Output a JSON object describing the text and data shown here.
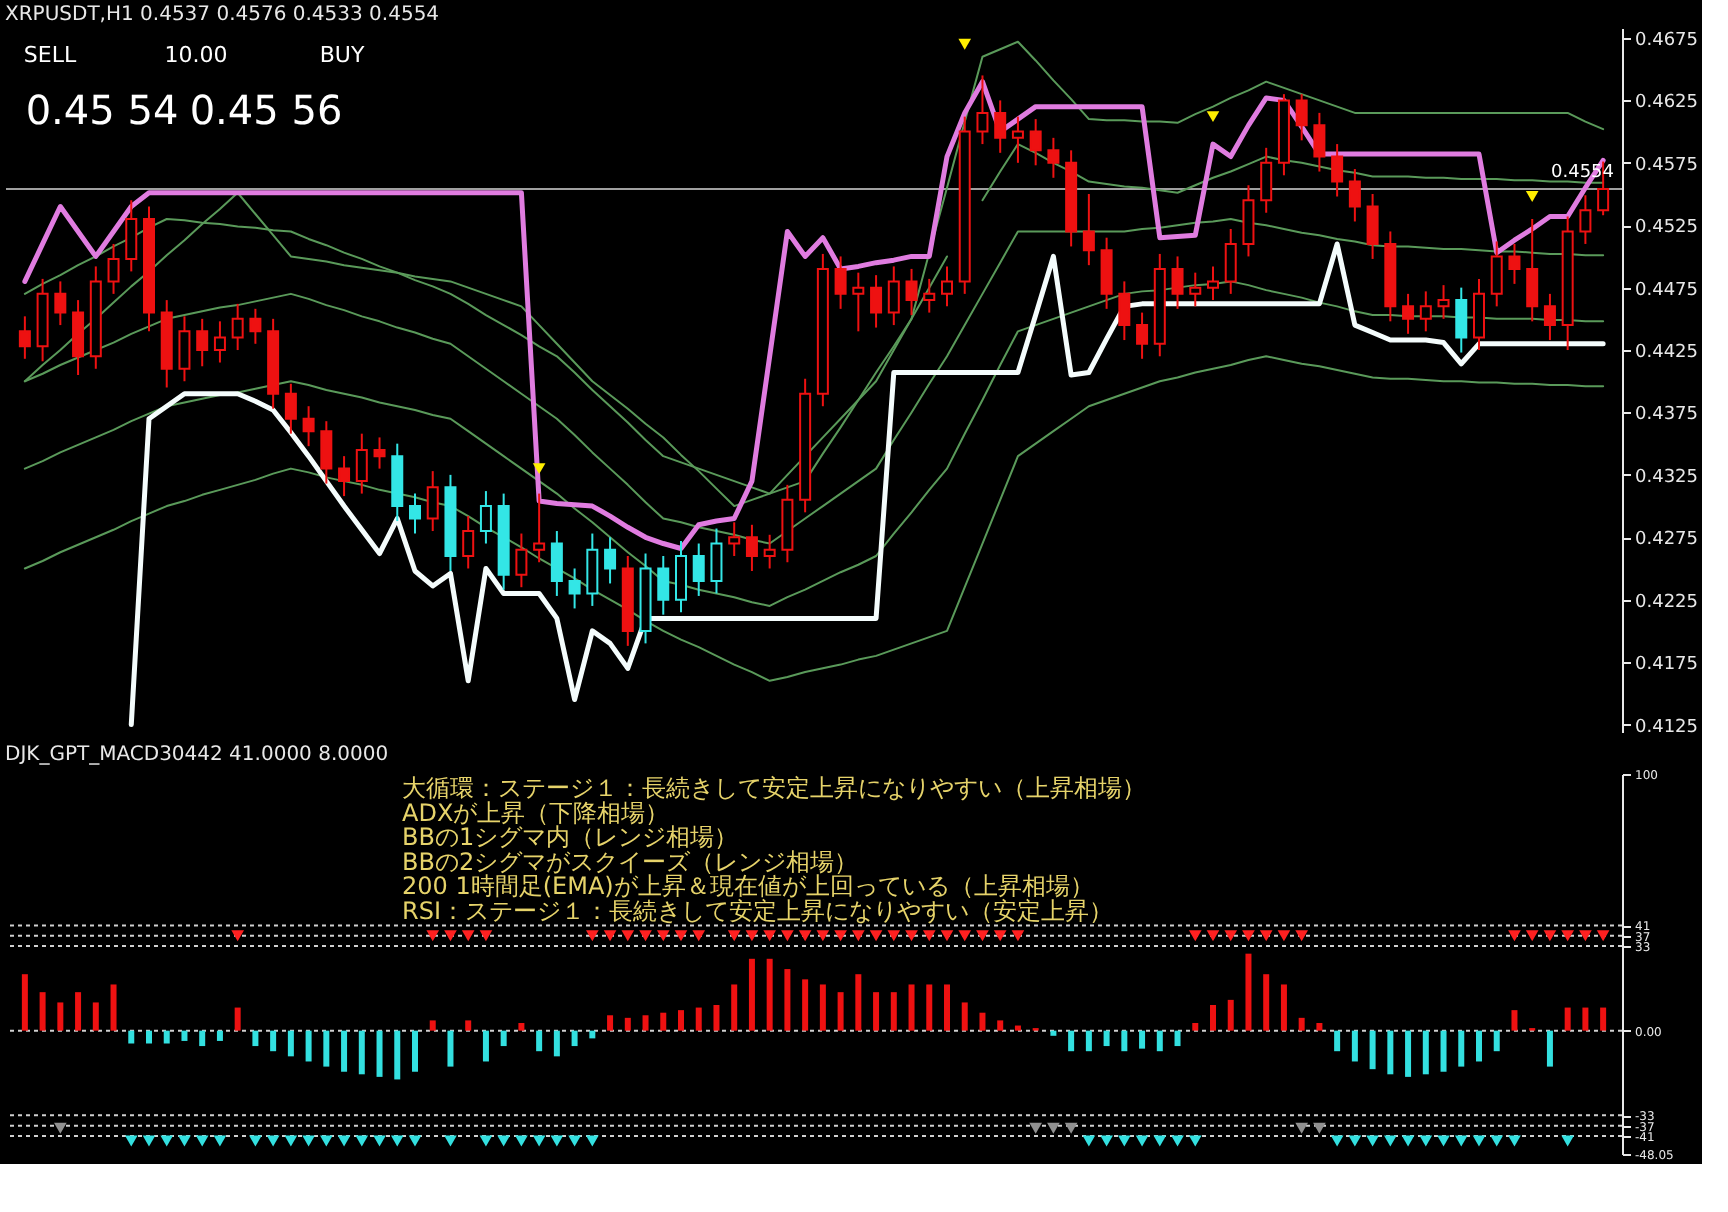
{
  "chart_data": [
    {
      "type": "candlestick",
      "title": "XRPUSDT,H1  0.4537 0.4576 0.4533 0.4554",
      "categories": [
        null,
        null,
        null,
        null,
        null,
        null,
        null,
        null,
        null,
        null,
        null,
        null,
        null,
        null,
        null,
        null,
        null,
        null,
        null,
        null,
        null,
        null,
        null,
        null,
        null,
        null,
        null,
        null,
        null,
        null,
        null,
        null,
        null,
        null,
        null,
        null,
        null,
        null,
        null,
        null,
        null,
        null,
        null,
        null,
        null,
        null,
        null,
        null,
        null,
        null,
        null,
        null,
        null,
        null,
        null,
        null,
        null,
        null,
        null,
        null,
        null,
        null,
        null,
        null,
        null,
        null,
        null,
        null,
        null,
        null,
        null,
        null,
        null,
        null,
        null,
        null,
        null,
        null,
        null,
        null,
        null,
        null,
        null,
        null,
        null,
        null,
        null,
        null,
        null,
        null
      ],
      "ohlc": [
        [
          0.444,
          0.4452,
          0.4418,
          0.4428
        ],
        [
          0.4428,
          0.4482,
          0.4416,
          0.447
        ],
        [
          0.447,
          0.448,
          0.4445,
          0.4455
        ],
        [
          0.4455,
          0.4465,
          0.4405,
          0.442
        ],
        [
          0.442,
          0.4492,
          0.441,
          0.448
        ],
        [
          0.448,
          0.451,
          0.447,
          0.4498
        ],
        [
          0.4498,
          0.4545,
          0.4488,
          0.453
        ],
        [
          0.453,
          0.454,
          0.444,
          0.4455
        ],
        [
          0.4455,
          0.4465,
          0.4395,
          0.441
        ],
        [
          0.441,
          0.4452,
          0.44,
          0.444
        ],
        [
          0.444,
          0.445,
          0.4412,
          0.4425
        ],
        [
          0.4425,
          0.4448,
          0.4415,
          0.4435
        ],
        [
          0.4435,
          0.4462,
          0.4425,
          0.445
        ],
        [
          0.445,
          0.4458,
          0.443,
          0.444
        ],
        [
          0.444,
          0.445,
          0.4378,
          0.439
        ],
        [
          0.439,
          0.4398,
          0.4358,
          0.437
        ],
        [
          0.437,
          0.438,
          0.4348,
          0.436
        ],
        [
          0.436,
          0.4368,
          0.4318,
          0.433
        ],
        [
          0.433,
          0.434,
          0.4308,
          0.432
        ],
        [
          0.432,
          0.4358,
          0.431,
          0.4345
        ],
        [
          0.4345,
          0.4355,
          0.433,
          0.434
        ],
        [
          0.434,
          0.435,
          0.4288,
          0.43
        ],
        [
          0.43,
          0.431,
          0.4278,
          0.429
        ],
        [
          0.429,
          0.4328,
          0.428,
          0.4315
        ],
        [
          0.4315,
          0.4325,
          0.4248,
          0.426
        ],
        [
          0.426,
          0.4292,
          0.425,
          0.428
        ],
        [
          0.428,
          0.4312,
          0.427,
          0.43
        ],
        [
          0.43,
          0.431,
          0.4233,
          0.4245
        ],
        [
          0.4245,
          0.4278,
          0.4235,
          0.4265
        ],
        [
          0.4265,
          0.431,
          0.4255,
          0.427
        ],
        [
          0.427,
          0.428,
          0.4228,
          0.424
        ],
        [
          0.424,
          0.425,
          0.4218,
          0.423
        ],
        [
          0.423,
          0.4278,
          0.422,
          0.4265
        ],
        [
          0.4265,
          0.4275,
          0.4238,
          0.425
        ],
        [
          0.425,
          0.426,
          0.4188,
          0.42
        ],
        [
          0.42,
          0.4262,
          0.419,
          0.425
        ],
        [
          0.425,
          0.426,
          0.4213,
          0.4225
        ],
        [
          0.4225,
          0.4272,
          0.4215,
          0.426
        ],
        [
          0.426,
          0.427,
          0.4228,
          0.424
        ],
        [
          0.424,
          0.4282,
          0.423,
          0.427
        ],
        [
          0.427,
          0.4287,
          0.426,
          0.4275
        ],
        [
          0.4275,
          0.4285,
          0.4248,
          0.426
        ],
        [
          0.426,
          0.4277,
          0.425,
          0.4265
        ],
        [
          0.4265,
          0.4317,
          0.4255,
          0.4305
        ],
        [
          0.4305,
          0.4402,
          0.4295,
          0.439
        ],
        [
          0.439,
          0.4502,
          0.438,
          0.449
        ],
        [
          0.449,
          0.45,
          0.4458,
          0.447
        ],
        [
          0.447,
          0.4487,
          0.444,
          0.4475
        ],
        [
          0.4475,
          0.4485,
          0.4443,
          0.4455
        ],
        [
          0.4455,
          0.4492,
          0.4445,
          0.448
        ],
        [
          0.448,
          0.449,
          0.4453,
          0.4465
        ],
        [
          0.4465,
          0.4482,
          0.4455,
          0.447
        ],
        [
          0.447,
          0.4492,
          0.446,
          0.448
        ],
        [
          0.448,
          0.4612,
          0.447,
          0.46
        ],
        [
          0.46,
          0.4645,
          0.459,
          0.4615
        ],
        [
          0.4615,
          0.4625,
          0.4583,
          0.4595
        ],
        [
          0.4595,
          0.4612,
          0.4575,
          0.46
        ],
        [
          0.46,
          0.461,
          0.4573,
          0.4585
        ],
        [
          0.4585,
          0.4595,
          0.4563,
          0.4575
        ],
        [
          0.4575,
          0.4585,
          0.4508,
          0.452
        ],
        [
          0.452,
          0.455,
          0.4493,
          0.4505
        ],
        [
          0.4505,
          0.4515,
          0.4458,
          0.447
        ],
        [
          0.447,
          0.448,
          0.4433,
          0.4445
        ],
        [
          0.4445,
          0.4455,
          0.4418,
          0.443
        ],
        [
          0.443,
          0.4502,
          0.442,
          0.449
        ],
        [
          0.449,
          0.45,
          0.4458,
          0.447
        ],
        [
          0.447,
          0.4487,
          0.446,
          0.4475
        ],
        [
          0.4475,
          0.4492,
          0.4465,
          0.448
        ],
        [
          0.448,
          0.4522,
          0.447,
          0.451
        ],
        [
          0.451,
          0.4557,
          0.45,
          0.4545
        ],
        [
          0.4545,
          0.4587,
          0.4535,
          0.4575
        ],
        [
          0.4575,
          0.463,
          0.4565,
          0.4625
        ],
        [
          0.4625,
          0.463,
          0.4593,
          0.4605
        ],
        [
          0.4605,
          0.4615,
          0.4568,
          0.458
        ],
        [
          0.458,
          0.459,
          0.4548,
          0.456
        ],
        [
          0.456,
          0.457,
          0.4528,
          0.454
        ],
        [
          0.454,
          0.455,
          0.4498,
          0.451
        ],
        [
          0.451,
          0.452,
          0.4448,
          0.446
        ],
        [
          0.446,
          0.447,
          0.4438,
          0.445
        ],
        [
          0.445,
          0.4472,
          0.444,
          0.446
        ],
        [
          0.446,
          0.4477,
          0.445,
          0.4465
        ],
        [
          0.4465,
          0.4475,
          0.4423,
          0.4435
        ],
        [
          0.4435,
          0.4482,
          0.4425,
          0.447
        ],
        [
          0.447,
          0.4512,
          0.446,
          0.45
        ],
        [
          0.45,
          0.451,
          0.4478,
          0.449
        ],
        [
          0.449,
          0.453,
          0.4448,
          0.446
        ],
        [
          0.446,
          0.447,
          0.4433,
          0.4445
        ],
        [
          0.4445,
          0.4532,
          0.4425,
          0.452
        ],
        [
          0.452,
          0.4549,
          0.451,
          0.4537
        ],
        [
          0.4537,
          0.4576,
          0.4533,
          0.4554
        ]
      ],
      "colors": [
        "#ee1111",
        "#ee1111",
        "#ee1111",
        "#ee1111",
        "#ee1111",
        "#ee1111",
        "#ee1111",
        "#ee1111",
        "#ee1111",
        "#ee1111",
        "#ee1111",
        "#ee1111",
        "#ee1111",
        "#ee1111",
        "#ee1111",
        "#ee1111",
        "#ee1111",
        "#ee1111",
        "#ee1111",
        "#ee1111",
        "#ee1111",
        "#33e6e6",
        "#33e6e6",
        "#ee1111",
        "#33e6e6",
        "#ee1111",
        "#33e6e6",
        "#33e6e6",
        "#ee1111",
        "#ee1111",
        "#33e6e6",
        "#33e6e6",
        "#33e6e6",
        "#33e6e6",
        "#ee1111",
        "#33e6e6",
        "#33e6e6",
        "#33e6e6",
        "#33e6e6",
        "#33e6e6",
        "#ee1111",
        "#ee1111",
        "#ee1111",
        "#ee1111",
        "#ee1111",
        "#ee1111",
        "#ee1111",
        "#ee1111",
        "#ee1111",
        "#ee1111",
        "#ee1111",
        "#ee1111",
        "#ee1111",
        "#ee1111",
        "#ee1111",
        "#ee1111",
        "#ee1111",
        "#ee1111",
        "#ee1111",
        "#ee1111",
        "#ee1111",
        "#ee1111",
        "#ee1111",
        "#ee1111",
        "#ee1111",
        "#ee1111",
        "#ee1111",
        "#ee1111",
        "#ee1111",
        "#ee1111",
        "#ee1111",
        "#ee1111",
        "#ee1111",
        "#ee1111",
        "#ee1111",
        "#ee1111",
        "#ee1111",
        "#ee1111",
        "#ee1111",
        "#ee1111",
        "#ee1111",
        "#33e6e6",
        "#ee1111",
        "#ee1111",
        "#ee1111",
        "#ee1111",
        "#ee1111",
        "#ee1111",
        "#ee1111",
        "#ee1111"
      ],
      "series": [
        {
          "type": "line",
          "color": "#5a9a5a",
          "values": [
            0.44,
            0.4413,
            0.4425,
            0.4438,
            0.445,
            0.4463,
            0.4476,
            0.4488,
            0.4501,
            0.4513,
            0.4526,
            0.4538,
            0.4551,
            0.4534,
            0.4517,
            0.45,
            0.4498,
            0.4496,
            0.4493,
            0.4491,
            0.4489,
            0.4487,
            0.4484,
            0.4482,
            0.448,
            0.4475,
            0.447,
            0.4465,
            0.446,
            0.4445,
            0.443,
            0.4415,
            0.44,
            0.4389,
            0.4378,
            0.4366,
            0.4355,
            0.4341,
            0.4328,
            0.4314,
            0.43,
            0.4305,
            0.431,
            0.4315,
            0.432,
            0.4342,
            0.4363,
            0.4385,
            0.4407,
            0.4428,
            0.445,
            0.4503,
            0.4555,
            0.4608,
            0.466,
            0.4666,
            0.4672,
            0.4657,
            0.4641,
            0.4626,
            0.461,
            0.4609,
            0.4609,
            0.4608,
            0.4608,
            0.4607,
            0.4614,
            0.462,
            0.4627,
            0.4633,
            0.464,
            0.4635,
            0.463,
            0.4625,
            0.462,
            0.4615,
            0.4615,
            0.4615,
            0.4615,
            0.4615,
            0.4615,
            0.4615,
            0.4615,
            0.4615,
            0.4615,
            0.4615,
            0.4615,
            0.4615,
            0.4608,
            0.4602
          ]
        },
        {
          "type": "line",
          "color": "#5a9a5a",
          "values": [
            0.447,
            0.4478,
            0.4485,
            0.4493,
            0.45,
            0.4508,
            0.4515,
            0.4523,
            0.453,
            0.4529,
            0.4527,
            0.4526,
            0.4524,
            0.4523,
            0.4521,
            0.452,
            0.4514,
            0.4509,
            0.4503,
            0.4498,
            0.4492,
            0.4487,
            0.4481,
            0.4476,
            0.447,
            0.4462,
            0.4453,
            0.4445,
            0.4437,
            0.4428,
            0.442,
            0.4407,
            0.4393,
            0.438,
            0.4367,
            0.4353,
            0.434,
            0.4335,
            0.433,
            0.4325,
            0.432,
            0.4315,
            0.431,
            0.4325,
            0.434,
            0.4355,
            0.437,
            0.4385,
            0.44,
            0.4425,
            0.445,
            0.4475,
            0.45,
            null,
            0.4545,
            0.4568,
            0.459,
            0.4583,
            0.4575,
            0.4568,
            0.456,
            0.4558,
            0.4556,
            0.4555,
            0.4553,
            0.4551,
            0.4557,
            0.4563,
            0.4568,
            0.4574,
            0.458,
            0.4577,
            0.4575,
            0.4572,
            0.4569,
            0.4567,
            0.4564,
            0.4564,
            0.4564,
            0.4563,
            0.4563,
            0.4562,
            0.4562,
            0.4562,
            0.4561,
            0.4561,
            0.456,
            0.456,
            0.4559,
            0.4559
          ]
        },
        {
          "type": "line",
          "color": "#5a9a5a",
          "values": [
            0.44,
            0.4406,
            0.4413,
            0.4419,
            0.4425,
            0.4431,
            0.4438,
            0.4444,
            0.445,
            0.4453,
            0.4456,
            0.4459,
            0.4461,
            0.4464,
            0.4467,
            0.447,
            0.4466,
            0.4461,
            0.4457,
            0.4452,
            0.4448,
            0.4443,
            0.4439,
            0.4434,
            0.443,
            0.442,
            0.441,
            0.44,
            0.439,
            0.438,
            0.437,
            0.4357,
            0.4343,
            0.433,
            0.4317,
            0.4303,
            0.429,
            0.4287,
            0.4283,
            0.428,
            0.4277,
            0.4273,
            0.427,
            0.428,
            0.429,
            0.43,
            0.431,
            0.432,
            0.433,
            0.4353,
            0.4375,
            0.4398,
            0.442,
            0.4445,
            0.447,
            0.4495,
            0.452,
            0.452,
            0.452,
            0.452,
            0.452,
            0.452,
            0.452,
            0.4522,
            0.4523,
            0.4525,
            0.4527,
            0.4528,
            0.453,
            0.4527,
            0.4525,
            0.4522,
            0.4519,
            0.4517,
            0.4514,
            0.4512,
            0.4509,
            0.4508,
            0.4508,
            0.4507,
            0.4506,
            0.4506,
            0.4505,
            0.4504,
            0.4504,
            0.4503,
            0.4502,
            0.4502,
            0.4501,
            0.4501
          ]
        },
        {
          "type": "line",
          "color": "#5a9a5a",
          "values": [
            0.433,
            0.4336,
            0.4343,
            0.4349,
            0.4355,
            0.4361,
            0.4368,
            0.4374,
            0.438,
            0.4383,
            0.4386,
            0.4389,
            0.4391,
            0.4394,
            0.4397,
            0.44,
            0.4397,
            0.4393,
            0.439,
            0.4387,
            0.4383,
            0.438,
            0.4377,
            0.4373,
            0.437,
            0.436,
            0.435,
            0.434,
            0.433,
            0.432,
            0.431,
            0.4298,
            0.4287,
            0.4275,
            0.4263,
            0.4252,
            0.424,
            0.4237,
            0.4233,
            0.423,
            0.4227,
            0.4223,
            0.422,
            0.4227,
            0.4233,
            0.424,
            0.4247,
            0.4253,
            0.426,
            0.4278,
            0.4295,
            0.4313,
            0.433,
            0.4358,
            0.4385,
            0.4413,
            0.444,
            0.4445,
            0.445,
            0.4455,
            0.446,
            0.4465,
            0.447,
            0.4472,
            0.4473,
            0.4475,
            0.4477,
            0.4478,
            0.448,
            0.4477,
            0.4473,
            0.447,
            0.4467,
            0.4463,
            0.446,
            0.4456,
            0.4453,
            0.4453,
            0.4452,
            0.4452,
            0.4452,
            0.4451,
            0.4451,
            0.445,
            0.445,
            0.445,
            0.4449,
            0.4449,
            0.4448,
            0.4448
          ]
        },
        {
          "type": "line",
          "color": "#5a9a5a",
          "values": [
            0.425,
            0.4256,
            0.4263,
            0.4269,
            0.4275,
            0.4281,
            0.4288,
            0.4294,
            0.43,
            0.4304,
            0.4309,
            0.4313,
            0.4317,
            0.4321,
            0.4326,
            0.433,
            0.4327,
            0.4323,
            0.432,
            0.4317,
            0.4313,
            0.431,
            0.4307,
            0.4303,
            0.43,
            0.4292,
            0.4283,
            0.4275,
            0.4267,
            0.4258,
            0.425,
            0.4242,
            0.4233,
            0.4225,
            0.4217,
            0.4208,
            0.42,
            0.4193,
            0.4187,
            0.418,
            0.4173,
            0.4167,
            0.416,
            0.4163,
            0.4167,
            0.417,
            0.4173,
            0.4177,
            0.418,
            0.4185,
            0.419,
            0.4195,
            0.42,
            0.4235,
            0.427,
            0.4305,
            0.434,
            0.435,
            0.436,
            0.437,
            0.438,
            0.4385,
            0.439,
            0.4395,
            0.44,
            0.4403,
            0.4407,
            0.441,
            0.4413,
            0.4417,
            0.442,
            0.4417,
            0.4414,
            0.4412,
            0.4409,
            0.4406,
            0.4403,
            0.4402,
            0.4402,
            0.4401,
            0.44,
            0.44,
            0.4399,
            0.4399,
            0.4398,
            0.4398,
            0.4397,
            0.4397,
            0.4396,
            0.4396
          ]
        },
        {
          "type": "line",
          "color": "#e07ce0",
          "values": [
            0.448,
            0.451,
            0.454,
            0.452,
            0.45,
            0.452,
            0.454,
            0.4551,
            0.4551,
            0.4551,
            0.4551,
            0.4551,
            0.4551,
            0.4551,
            0.4551,
            0.4551,
            0.4551,
            0.4551,
            0.4551,
            0.4551,
            0.4551,
            0.4551,
            0.4551,
            0.4551,
            0.4551,
            0.4551,
            0.4551,
            0.4551,
            0.4551,
            0.4304,
            0.4302,
            0.4301,
            0.43,
            0.4292,
            0.4283,
            0.4275,
            0.427,
            0.4266,
            0.4285,
            0.4288,
            0.429,
            0.432,
            0.442,
            0.452,
            0.45,
            0.4515,
            0.449,
            0.4492,
            0.4495,
            0.4497,
            0.45,
            0.45,
            0.458,
            0.4615,
            0.464,
            0.46,
            0.461,
            0.462,
            0.462,
            0.462,
            0.462,
            0.462,
            0.462,
            0.462,
            0.4515,
            0.4516,
            0.4517,
            0.459,
            0.458,
            0.4605,
            0.4627,
            0.4625,
            0.4604,
            0.4582,
            0.4582,
            0.4582,
            0.4582,
            0.4582,
            0.4582,
            0.4582,
            0.4582,
            0.4582,
            0.4582,
            0.4503,
            0.4513,
            0.4522,
            0.4532,
            0.4532,
            0.4555,
            0.4577
          ]
        },
        {
          "type": "line",
          "color": "#f4fcfc",
          "values": [
            null,
            null,
            null,
            null,
            null,
            null,
            0.4125,
            0.437,
            0.438,
            0.439,
            0.439,
            0.439,
            0.439,
            0.4384,
            0.4377,
            0.4359,
            0.434,
            0.432,
            0.43,
            0.4281,
            0.4262,
            0.429,
            0.4248,
            0.4236,
            0.4246,
            0.416,
            0.425,
            0.423,
            0.423,
            0.423,
            0.421,
            0.4145,
            0.42,
            0.419,
            0.417,
            0.421,
            0.421,
            0.421,
            0.421,
            0.421,
            0.421,
            0.421,
            0.421,
            0.421,
            0.421,
            0.421,
            0.421,
            0.421,
            0.421,
            0.4407,
            0.4407,
            0.4407,
            0.4407,
            0.4407,
            0.4407,
            0.4407,
            0.4407,
            0.4453,
            0.45,
            0.4405,
            0.4407,
            0.4434,
            0.446,
            0.4462,
            0.4462,
            0.4462,
            0.4462,
            0.4462,
            0.4462,
            0.4462,
            0.4462,
            0.4462,
            0.4462,
            0.4462,
            0.451,
            0.4445,
            0.4439,
            0.4433,
            0.4433,
            0.4433,
            0.4431,
            0.4414,
            0.443,
            0.443,
            0.443,
            0.443,
            0.443,
            0.443,
            0.443,
            0.443
          ]
        },
        {
          "type": "scatter",
          "marker": "triangle",
          "color": "#ffee00",
          "values": [
            null,
            null,
            null,
            null,
            null,
            null,
            null,
            null,
            null,
            null,
            null,
            null,
            null,
            null,
            null,
            null,
            null,
            null,
            null,
            null,
            null,
            null,
            null,
            null,
            null,
            null,
            null,
            null,
            null,
            0.433,
            null,
            null,
            null,
            null,
            null,
            null,
            null,
            null,
            null,
            null,
            null,
            null,
            null,
            null,
            null,
            null,
            null,
            null,
            null,
            null,
            null,
            null,
            null,
            0.467,
            null,
            null,
            null,
            null,
            null,
            null,
            null,
            null,
            null,
            null,
            null,
            null,
            null,
            0.4612,
            null,
            null,
            null,
            null,
            null,
            null,
            null,
            null,
            null,
            null,
            null,
            null,
            null,
            null,
            null,
            null,
            null,
            0.4548,
            null,
            null,
            null,
            null
          ]
        }
      ],
      "ref_lines": [
        {
          "axis": "y",
          "value": 0.4554,
          "label": "0.4554",
          "color": "#a0a0a0"
        }
      ],
      "annotations": [
        "SELL",
        "10.00",
        "BUY",
        "0.45 54",
        "0.45 56"
      ],
      "ylim": [
        0.4119,
        0.4683
      ],
      "yticks": [
        0.4675,
        0.4625,
        0.4575,
        0.4525,
        0.4475,
        0.4425,
        0.4375,
        0.4325,
        0.4275,
        0.4225,
        0.4175,
        0.4125
      ],
      "tick_labels": "y",
      "grid": false
    },
    {
      "type": "bar",
      "title": "DJK_GPT_MACD30442 41.0000 8.0000",
      "categories": [
        null,
        null,
        null,
        null,
        null,
        null,
        null,
        null,
        null,
        null,
        null,
        null,
        null,
        null,
        null,
        null,
        null,
        null,
        null,
        null,
        null,
        null,
        null,
        null,
        null,
        null,
        null,
        null,
        null,
        null,
        null,
        null,
        null,
        null,
        null,
        null,
        null,
        null,
        null,
        null,
        null,
        null,
        null,
        null,
        null,
        null,
        null,
        null,
        null,
        null,
        null,
        null,
        null,
        null,
        null,
        null,
        null,
        null,
        null,
        null,
        null,
        null,
        null,
        null,
        null,
        null,
        null,
        null,
        null,
        null,
        null,
        null,
        null,
        null,
        null,
        null,
        null,
        null,
        null,
        null,
        null,
        null,
        null,
        null,
        null,
        null,
        null,
        null,
        null,
        null
      ],
      "values": [
        22,
        15,
        11,
        15,
        11,
        18,
        -5,
        -5,
        -5,
        -4,
        -6,
        -4,
        9,
        -6,
        -8,
        -10,
        -12,
        -14,
        -16,
        -17,
        -18,
        -19,
        -16,
        4,
        -14,
        4,
        -12,
        -6,
        3,
        -8,
        -10,
        -6,
        -3,
        6,
        5,
        6,
        7,
        8,
        9,
        10,
        18,
        28,
        28,
        24,
        20,
        18,
        15,
        22,
        15,
        15,
        18,
        18,
        18,
        11,
        7,
        4,
        2,
        1,
        -2,
        -8,
        -8,
        -6,
        -8,
        -7,
        -8,
        -6,
        3,
        10,
        12,
        30,
        22,
        18,
        5,
        3,
        -8,
        -12,
        -15,
        -17,
        -18,
        -17,
        -16,
        -14,
        -12,
        -8,
        8,
        1,
        -14,
        9,
        9,
        9
      ],
      "colors": [
        "#ee1111",
        "#ee1111",
        "#ee1111",
        "#ee1111",
        "#ee1111",
        "#ee1111",
        "#33e0e0",
        "#33e0e0",
        "#33e0e0",
        "#33e0e0",
        "#33e0e0",
        "#33e0e0",
        "#ee1111",
        "#33e0e0",
        "#33e0e0",
        "#33e0e0",
        "#33e0e0",
        "#33e0e0",
        "#33e0e0",
        "#33e0e0",
        "#33e0e0",
        "#33e0e0",
        "#33e0e0",
        "#ee1111",
        "#33e0e0",
        "#ee1111",
        "#33e0e0",
        "#33e0e0",
        "#ee1111",
        "#33e0e0",
        "#33e0e0",
        "#33e0e0",
        "#33e0e0",
        "#ee1111",
        "#ee1111",
        "#ee1111",
        "#ee1111",
        "#ee1111",
        "#ee1111",
        "#ee1111",
        "#ee1111",
        "#ee1111",
        "#ee1111",
        "#ee1111",
        "#ee1111",
        "#ee1111",
        "#ee1111",
        "#ee1111",
        "#ee1111",
        "#ee1111",
        "#ee1111",
        "#ee1111",
        "#ee1111",
        "#ee1111",
        "#ee1111",
        "#ee1111",
        "#ee1111",
        "#ee1111",
        "#33e0e0",
        "#33e0e0",
        "#33e0e0",
        "#33e0e0",
        "#33e0e0",
        "#33e0e0",
        "#33e0e0",
        "#33e0e0",
        "#ee1111",
        "#ee1111",
        "#ee1111",
        "#ee1111",
        "#ee1111",
        "#ee1111",
        "#ee1111",
        "#ee1111",
        "#33e0e0",
        "#33e0e0",
        "#33e0e0",
        "#33e0e0",
        "#33e0e0",
        "#33e0e0",
        "#33e0e0",
        "#33e0e0",
        "#33e0e0",
        "#33e0e0",
        "#ee1111",
        "#ee1111",
        "#33e0e0",
        "#ee1111",
        "#ee1111",
        "#ee1111"
      ],
      "series": [
        {
          "type": "scatter",
          "marker": "triangle",
          "color": "#ff2020",
          "values": [
            null,
            null,
            null,
            null,
            null,
            null,
            null,
            null,
            null,
            null,
            null,
            null,
            37,
            null,
            null,
            null,
            null,
            null,
            null,
            null,
            null,
            null,
            null,
            37,
            37,
            37,
            37,
            null,
            null,
            null,
            null,
            null,
            37,
            37,
            37,
            37,
            37,
            37,
            37,
            null,
            37,
            37,
            37,
            37,
            37,
            37,
            37,
            37,
            37,
            37,
            37,
            37,
            37,
            37,
            37,
            37,
            37,
            null,
            null,
            null,
            null,
            null,
            null,
            null,
            null,
            null,
            37,
            37,
            37,
            37,
            37,
            37,
            37,
            null,
            null,
            null,
            null,
            null,
            null,
            null,
            null,
            null,
            null,
            null,
            37,
            37,
            37,
            37,
            37,
            37
          ]
        },
        {
          "type": "scatter",
          "marker": "triangle",
          "color": "#33e0e0",
          "values": [
            null,
            null,
            null,
            null,
            null,
            null,
            -43,
            -43,
            -43,
            -43,
            -43,
            -43,
            null,
            -43,
            -43,
            -43,
            -43,
            -43,
            -43,
            -43,
            -43,
            -43,
            -43,
            null,
            -43,
            null,
            -43,
            -43,
            -43,
            -43,
            -43,
            -43,
            -43,
            null,
            null,
            null,
            null,
            null,
            null,
            null,
            null,
            null,
            null,
            null,
            null,
            null,
            null,
            null,
            null,
            null,
            null,
            null,
            null,
            null,
            null,
            null,
            null,
            null,
            null,
            null,
            -43,
            -43,
            -43,
            -43,
            -43,
            -43,
            -43,
            null,
            null,
            null,
            null,
            null,
            null,
            null,
            -43,
            -43,
            -43,
            -43,
            -43,
            -43,
            -43,
            -43,
            -43,
            -43,
            -43,
            null,
            null,
            -43,
            null,
            null
          ]
        },
        {
          "type": "scatter",
          "marker": "triangle",
          "color": "#909090",
          "values": [
            null,
            null,
            -38,
            null,
            null,
            null,
            null,
            null,
            null,
            null,
            null,
            null,
            null,
            null,
            null,
            null,
            null,
            null,
            null,
            null,
            null,
            null,
            null,
            null,
            null,
            null,
            null,
            null,
            null,
            null,
            null,
            null,
            null,
            null,
            null,
            null,
            null,
            null,
            null,
            null,
            null,
            null,
            null,
            null,
            null,
            null,
            null,
            null,
            null,
            null,
            null,
            null,
            null,
            null,
            null,
            null,
            null,
            -38,
            -38,
            -38,
            null,
            null,
            null,
            null,
            null,
            null,
            null,
            null,
            null,
            null,
            null,
            null,
            -38,
            -38,
            null,
            null,
            null,
            null,
            null,
            null,
            null,
            null,
            null,
            null,
            null,
            null,
            null,
            null,
            null,
            null
          ]
        }
      ],
      "ref_lines": [
        {
          "axis": "y",
          "value": 41,
          "color": "#d0d0d0",
          "line_style": "dotted"
        },
        {
          "axis": "y",
          "value": 37,
          "color": "#d0d0d0",
          "line_style": "dotted"
        },
        {
          "axis": "y",
          "value": 33,
          "color": "#d0d0d0",
          "line_style": "dotted"
        },
        {
          "axis": "y",
          "value": 0,
          "color": "#d0d0d0",
          "line_style": "dotted"
        },
        {
          "axis": "y",
          "value": -33,
          "color": "#d0d0d0",
          "line_style": "dotted"
        },
        {
          "axis": "y",
          "value": -37,
          "color": "#d0d0d0",
          "line_style": "dotted"
        },
        {
          "axis": "y",
          "value": -41,
          "color": "#d0d0d0",
          "line_style": "dotted"
        }
      ],
      "annotations": [
        "大循環：ステージ１：長続きして安定上昇になりやすい（上昇相場）",
        "ADXが上昇（下降相場）",
        "BBの1シグマ内（レンジ相場）",
        "BBの2シグマがスクイーズ（レンジ相場）",
        "200 1時間足(EMA)が上昇＆現在値が上回っている（上昇相場）",
        "RSI：ステージ１：長続きして安定上昇になりやすい（安定上昇）"
      ],
      "ylim": [
        -48.05,
        100
      ],
      "yticks": [
        100,
        41,
        37,
        33,
        {
          "value": 0,
          "label": "0.00"
        },
        -33,
        -37,
        -41,
        -48.05
      ],
      "tick_labels": "y",
      "grid": false
    }
  ]
}
